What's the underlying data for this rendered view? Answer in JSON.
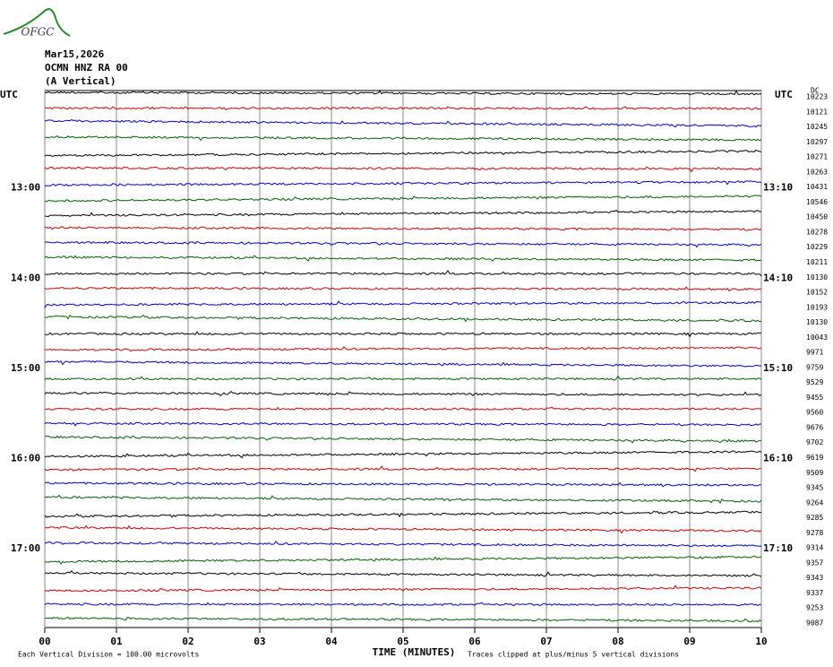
{
  "logo": "OFGC",
  "header": {
    "date": "Mar15,2026",
    "station": "OCMN HNZ RA 00",
    "component": "(A Vertical)"
  },
  "left_unit": "UTC",
  "right_unit": "UTC",
  "dc_heading": "DC",
  "hour_labels_left": [
    "13:00",
    "14:00",
    "15:00",
    "16:00",
    "17:00"
  ],
  "hour_labels_right": [
    "13:10",
    "14:10",
    "15:10",
    "16:10",
    "17:10"
  ],
  "dc_values": [
    10223,
    10121,
    10245,
    10297,
    10271,
    10263,
    10431,
    10546,
    10450,
    10278,
    10229,
    10211,
    10130,
    10152,
    10193,
    10130,
    10043,
    9971,
    9759,
    9529,
    9455,
    9560,
    9676,
    9702,
    9619,
    9509,
    9345,
    9264,
    9285,
    9278,
    9314,
    9357,
    9343,
    9337,
    9253,
    9087
  ],
  "trace_colors": [
    "#000000",
    "#d00000",
    "#0000d0",
    "#006000"
  ],
  "x_ticks": [
    "00",
    "01",
    "02",
    "03",
    "04",
    "05",
    "06",
    "07",
    "08",
    "09",
    "10"
  ],
  "x_axis_title": "TIME (MINUTES)",
  "footnote_left": "Each Vertical Division =  100.00 microvolts",
  "footnote_right": "Traces clipped at plus/minus 5 vertical divisions"
}
